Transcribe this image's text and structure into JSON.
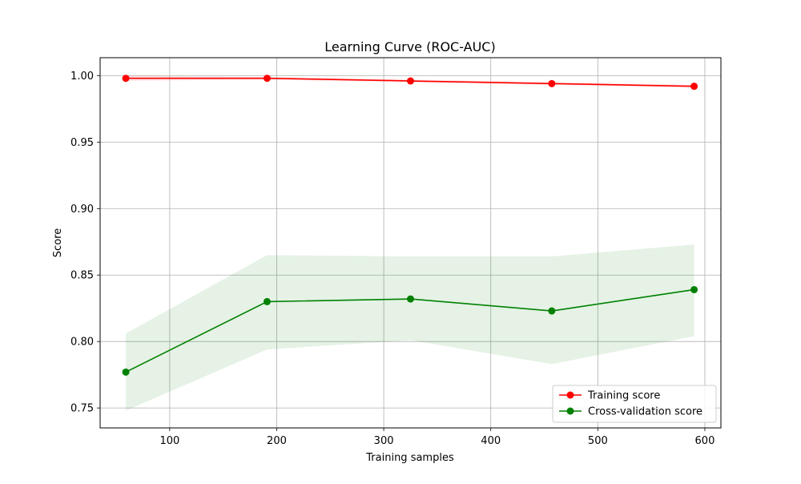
{
  "chart_data": {
    "type": "line",
    "title": "Learning Curve (ROC-AUC)",
    "xlabel": "Training samples",
    "ylabel": "Score",
    "xlim": [
      35,
      615
    ],
    "ylim": [
      0.735,
      1.0135
    ],
    "xticks": [
      100,
      200,
      300,
      400,
      500,
      600
    ],
    "yticks": [
      0.75,
      0.8,
      0.85,
      0.9,
      0.95,
      1.0
    ],
    "ytick_labels": [
      "0.75",
      "0.80",
      "0.85",
      "0.90",
      "0.95",
      "1.00"
    ],
    "grid": true,
    "legend_position": "lower-right",
    "x": [
      59,
      191,
      325,
      457,
      590
    ],
    "series": [
      {
        "name": "Training score",
        "color": "#ff0000",
        "values": [
          0.998,
          0.998,
          0.996,
          0.994,
          0.992
        ],
        "band_lower": [
          0.996,
          0.997,
          0.995,
          0.993,
          0.991
        ],
        "band_upper": [
          1.0,
          0.999,
          0.997,
          0.995,
          0.993
        ]
      },
      {
        "name": "Cross-validation score",
        "color": "#008000",
        "values": [
          0.777,
          0.83,
          0.832,
          0.823,
          0.839
        ],
        "band_lower": [
          0.748,
          0.794,
          0.801,
          0.783,
          0.804
        ],
        "band_upper": [
          0.806,
          0.865,
          0.864,
          0.864,
          0.873
        ]
      }
    ]
  }
}
